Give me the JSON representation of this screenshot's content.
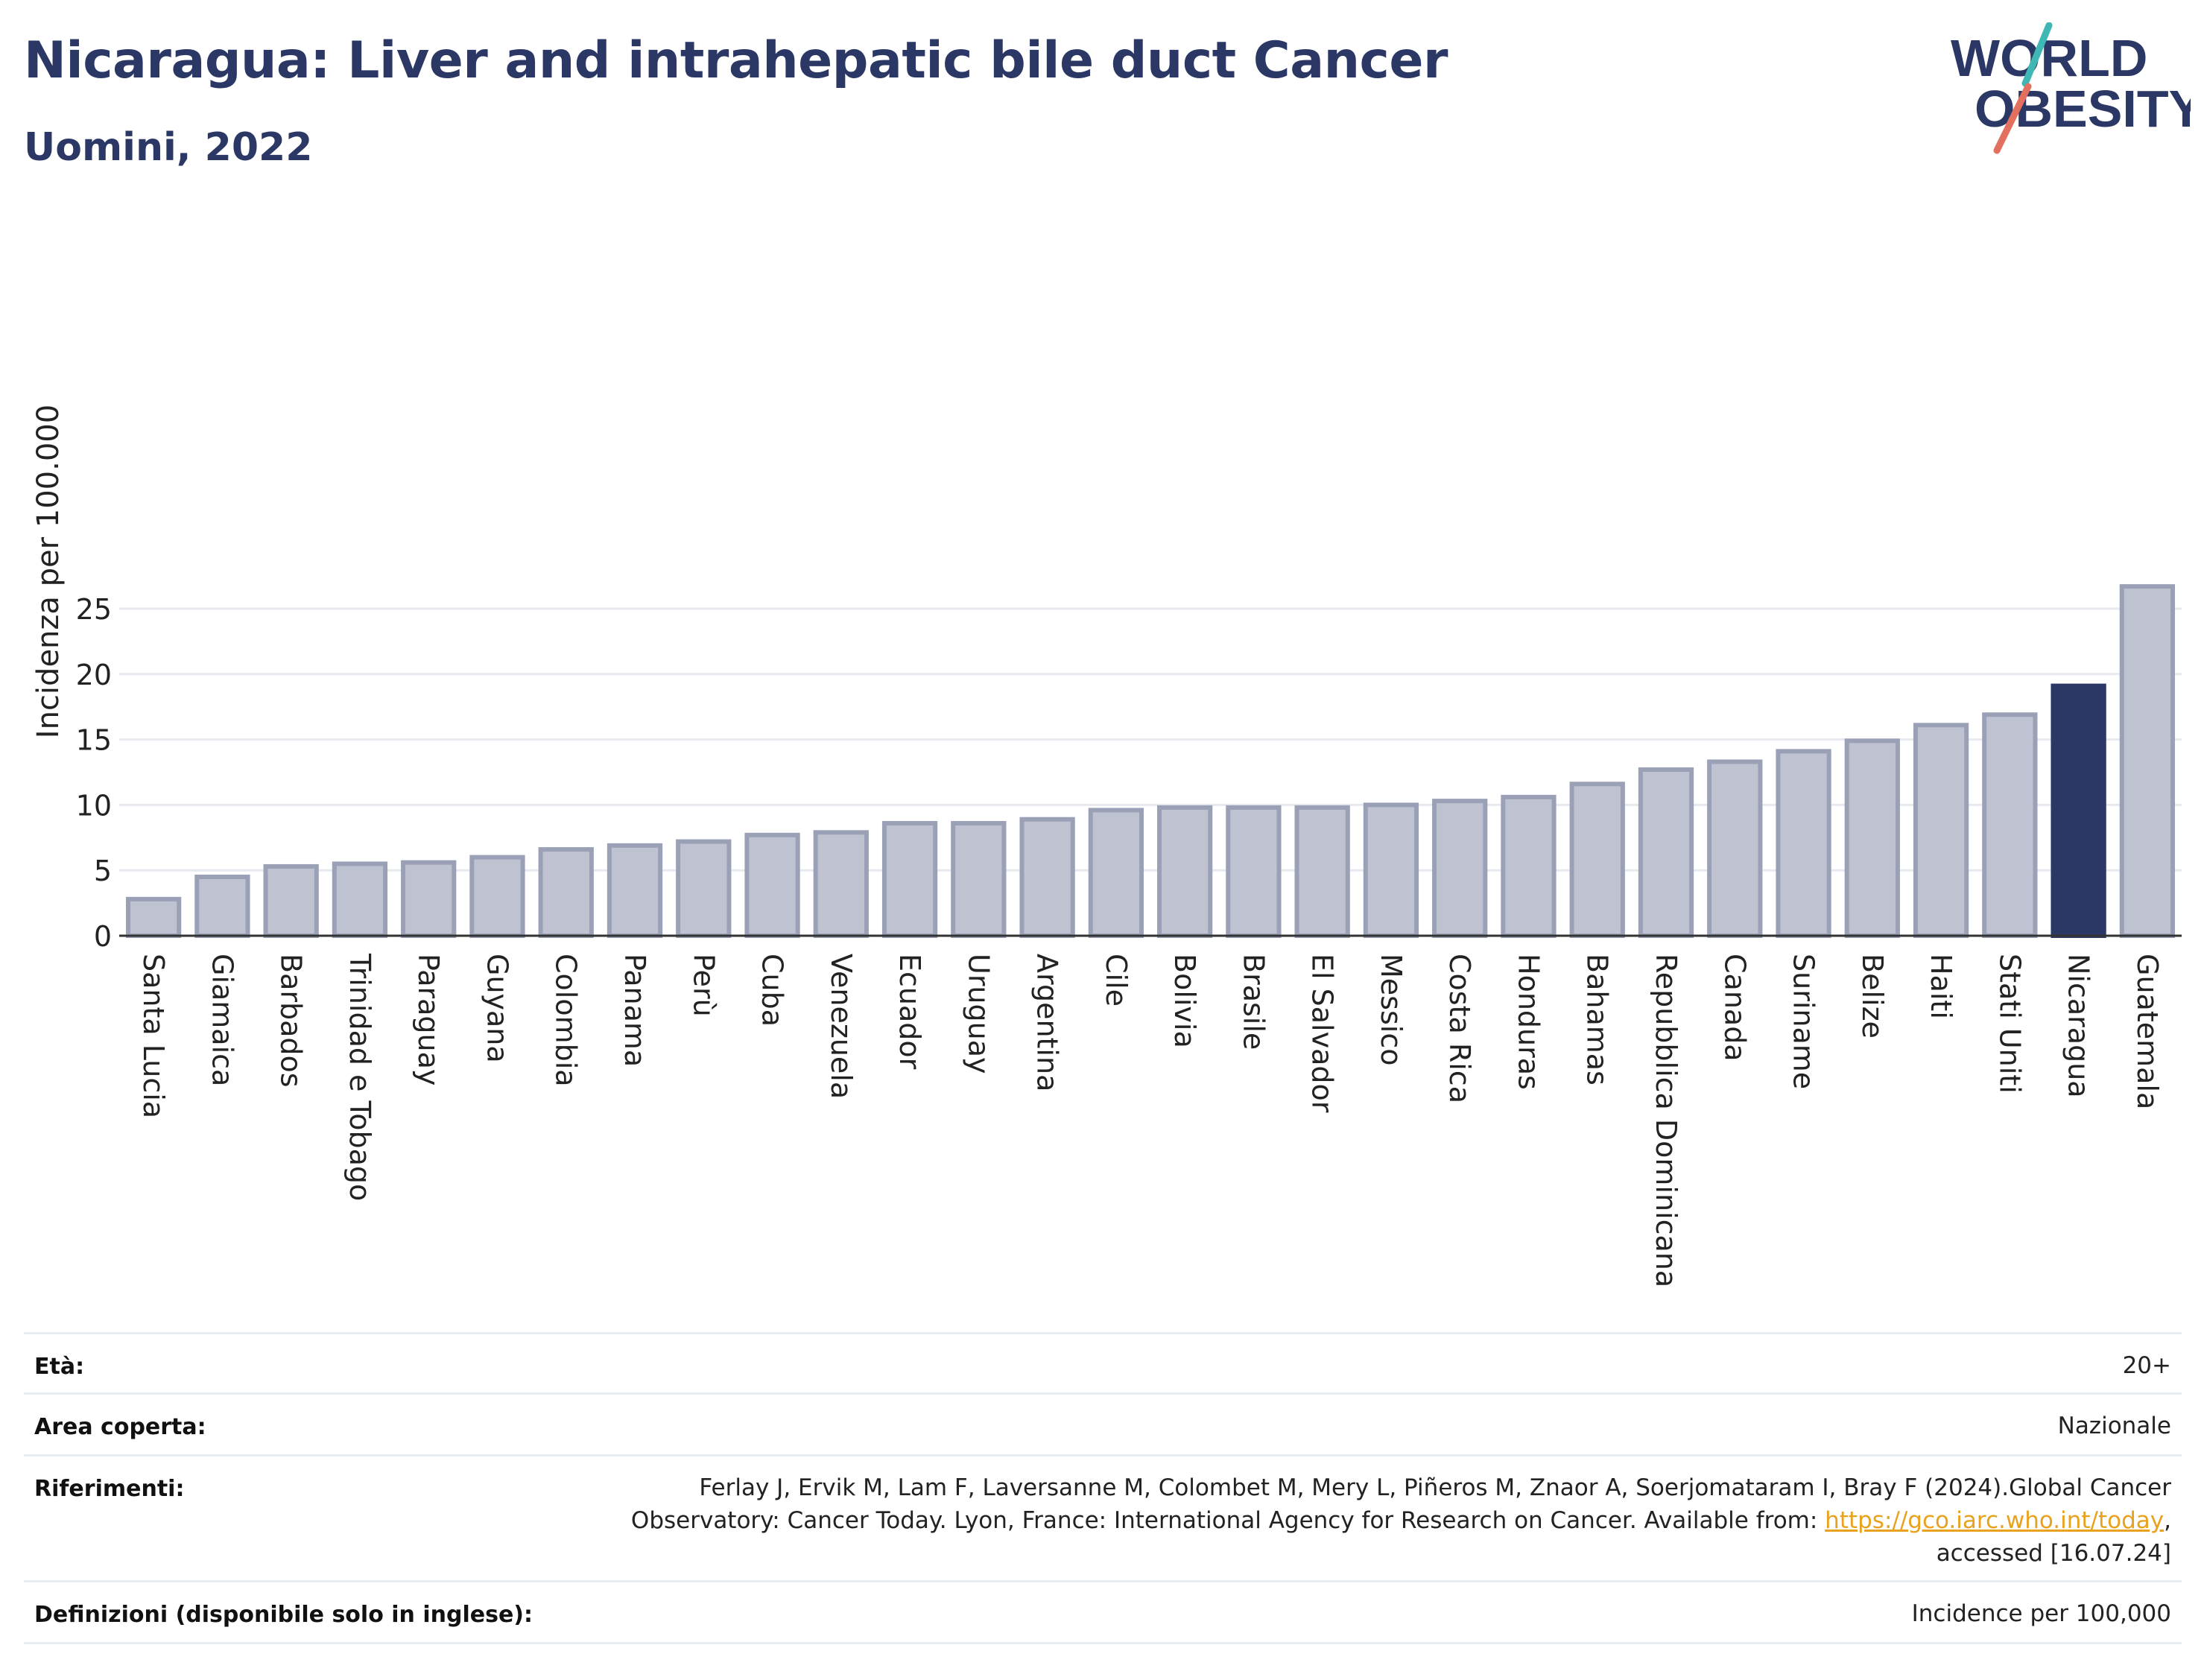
{
  "header": {
    "title": "Nicaragua: Liver and intrahepatic bile duct Cancer",
    "subtitle": "Uomini, 2022"
  },
  "logo": {
    "line1": "WORLD",
    "line2": "OBESITY"
  },
  "colors": {
    "bar": "#bfc3d1",
    "bar_border": "#9aa0b6",
    "highlight": "#2b3764",
    "grid": "#e6e9ef",
    "axis": "#333333"
  },
  "chart_data": {
    "type": "bar",
    "ylabel": "Incidenza per 100.000",
    "xlabel": "",
    "ylim": [
      0,
      27
    ],
    "yticks": [
      0,
      5,
      10,
      15,
      20,
      25
    ],
    "grid": true,
    "highlight": "Nicaragua",
    "categories": [
      "Santa Lucia",
      "Giamaica",
      "Barbados",
      "Trinidad e Tobago",
      "Paraguay",
      "Guyana",
      "Colombia",
      "Panama",
      "Perù",
      "Cuba",
      "Venezuela",
      "Ecuador",
      "Uruguay",
      "Argentina",
      "Cile",
      "Bolivia",
      "Brasile",
      "El Salvador",
      "Messico",
      "Costa Rica",
      "Honduras",
      "Bahamas",
      "Repubblica Dominicana",
      "Canada",
      "Suriname",
      "Belize",
      "Haiti",
      "Stati Uniti",
      "Nicaragua",
      "Guatemala"
    ],
    "values": [
      2.8,
      4.5,
      5.3,
      5.5,
      5.6,
      6.0,
      6.6,
      6.9,
      7.2,
      7.7,
      7.9,
      8.6,
      8.6,
      8.9,
      9.6,
      9.8,
      9.8,
      9.8,
      10.0,
      10.3,
      10.6,
      11.6,
      12.7,
      13.3,
      14.1,
      14.9,
      16.1,
      16.9,
      19.1,
      26.7
    ]
  },
  "footer": {
    "age_label": "Età:",
    "age_value": "20+",
    "area_label": "Area coperta:",
    "area_value": "Nazionale",
    "ref_label": "Riferimenti:",
    "ref_line1": "Ferlay J, Ervik M, Lam F, Laversanne M, Colombet M, Mery L, Piñeros M, Znaor A, Soerjomataram I, Bray F (2024).Global Cancer",
    "ref_line2_pre": "Observatory: Cancer Today. Lyon, France: International Agency for Research on Cancer. Available from: ",
    "ref_link": "https://gco.iarc.who.int/today",
    "ref_line2_post": ",",
    "ref_line3": "accessed [16.07.24]",
    "def_label": "Definizioni (disponibile solo in inglese):",
    "def_value": "Incidence per 100,000"
  }
}
